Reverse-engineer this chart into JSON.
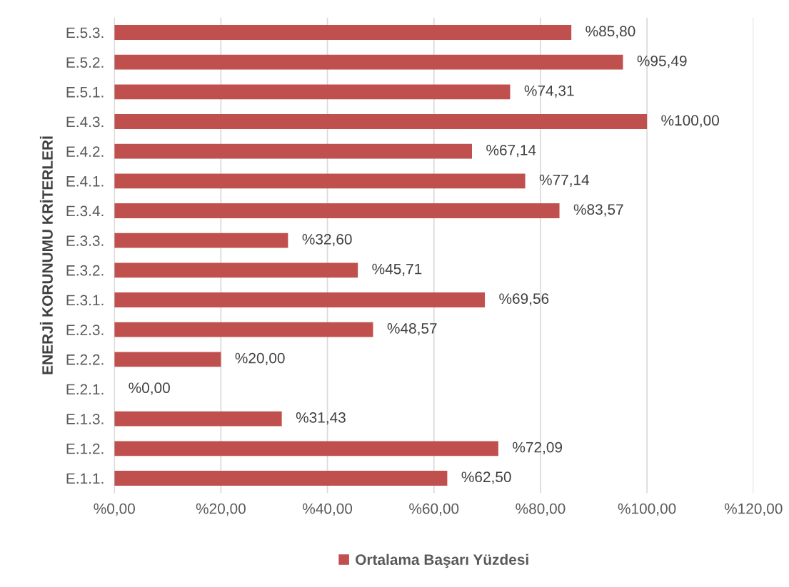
{
  "chart_data": {
    "type": "bar",
    "orientation": "horizontal",
    "ylabel": "ENERJİ KORUNUMU KRİTERLERİ",
    "categories": [
      "E.5.3.",
      "E.5.2.",
      "E.5.1.",
      "E.4.3.",
      "E.4.2.",
      "E.4.1.",
      "E.3.4.",
      "E.3.3.",
      "E.3.2.",
      "E.3.1.",
      "E.2.3.",
      "E.2.2.",
      "E.2.1.",
      "E.1.3.",
      "E.1.2.",
      "E.1.1."
    ],
    "series": [
      {
        "name": "Ortalama Başarı Yüzdesi",
        "color": "#c0504d",
        "values": [
          85.8,
          95.49,
          74.31,
          100.0,
          67.14,
          77.14,
          83.57,
          32.6,
          45.71,
          69.56,
          48.57,
          20.0,
          0.0,
          31.43,
          72.09,
          62.5
        ],
        "value_labels": [
          "%85,80",
          "%95,49",
          "%74,31",
          "%100,00",
          "%67,14",
          "%77,14",
          "%83,57",
          "%32,60",
          "%45,71",
          "%69,56",
          "%48,57",
          "%20,00",
          "%0,00",
          "%31,43",
          "%72,09",
          "%62,50"
        ]
      }
    ],
    "xlim": [
      0,
      120
    ],
    "xticks": [
      {
        "value": 0,
        "label": "%0,00"
      },
      {
        "value": 20,
        "label": "%20,00"
      },
      {
        "value": 40,
        "label": "%40,00"
      },
      {
        "value": 60,
        "label": "%60,00"
      },
      {
        "value": 80,
        "label": "%80,00"
      },
      {
        "value": 100,
        "label": "%100,00"
      },
      {
        "value": 120,
        "label": "%120,00"
      }
    ],
    "grid": "x",
    "legend": "bottom"
  }
}
